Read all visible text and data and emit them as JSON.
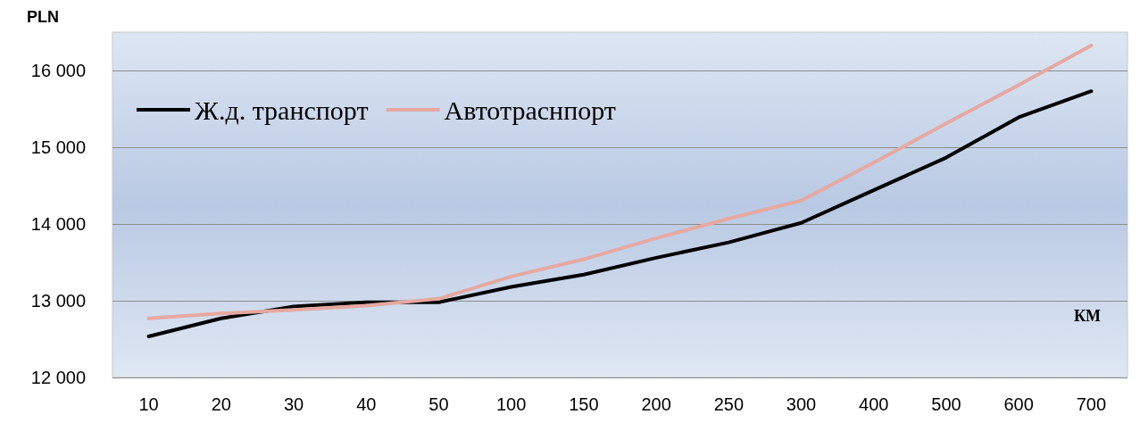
{
  "chart_data": {
    "type": "line",
    "ylabel": "PLN",
    "xlabel": "КМ",
    "categories": [
      "10",
      "20",
      "30",
      "40",
      "50",
      "100",
      "150",
      "200",
      "250",
      "300",
      "400",
      "500",
      "600",
      "700"
    ],
    "series": [
      {
        "name": "Ж.д. транспорт",
        "color": "#000000",
        "values": [
          12535,
          12770,
          12925,
          12980,
          12980,
          13180,
          13340,
          13560,
          13760,
          14015,
          14440,
          14865,
          15390,
          15730
        ]
      },
      {
        "name": "Автотраснпорт",
        "color": "#e6a8a0",
        "values": [
          12770,
          12835,
          12880,
          12935,
          13025,
          13315,
          13540,
          13815,
          14070,
          14305,
          14800,
          15310,
          15810,
          16325
        ]
      }
    ],
    "ylim": [
      12000,
      16500
    ],
    "yticks": [
      {
        "value": 12000,
        "label": "12 000"
      },
      {
        "value": 13000,
        "label": "13 000"
      },
      {
        "value": 14000,
        "label": "14 000"
      },
      {
        "value": 15000,
        "label": "15 000"
      },
      {
        "value": 16000,
        "label": "16 000"
      }
    ],
    "grid": "y",
    "legend": "top left",
    "marker": "none",
    "line_style": "solid"
  }
}
